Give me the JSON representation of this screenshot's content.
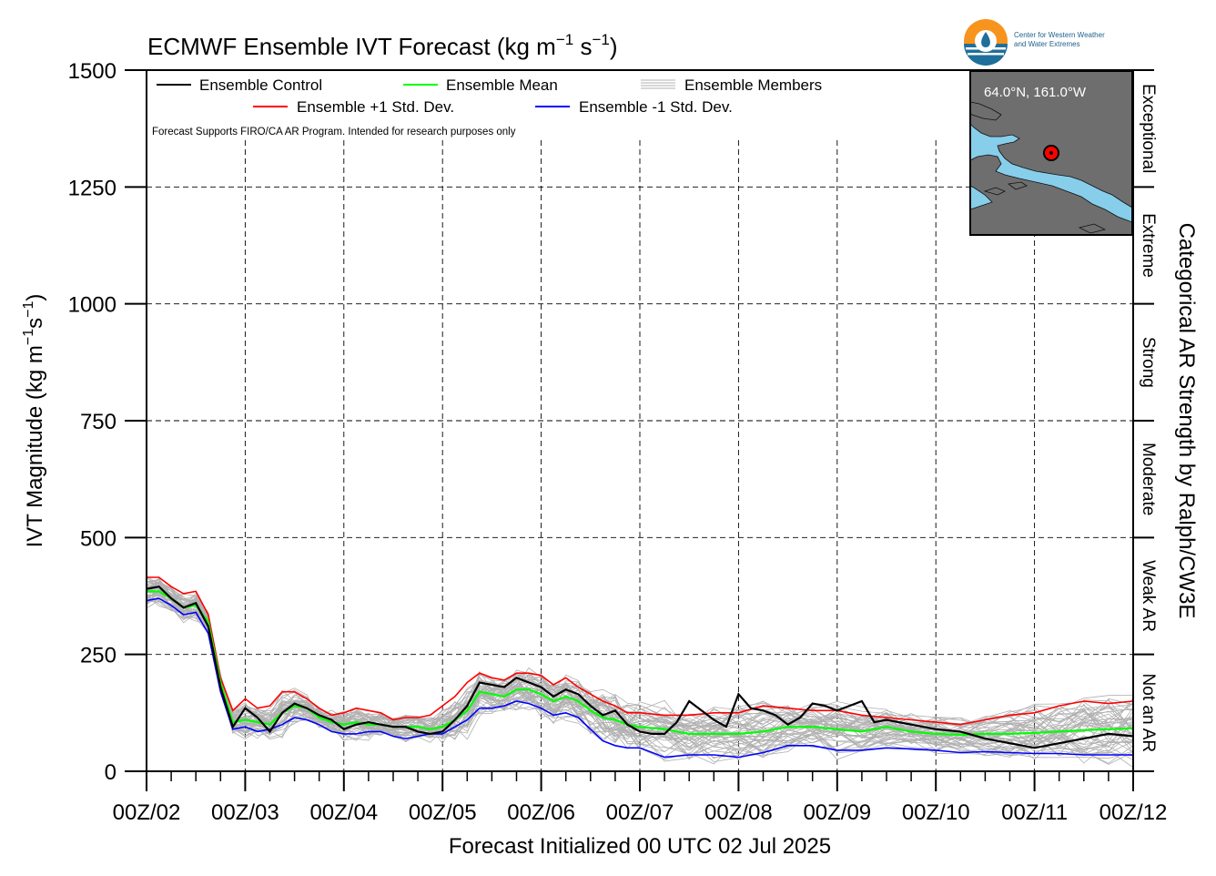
{
  "chart_data": {
    "type": "line",
    "title": "ECMWF Ensemble IVT Forecast (kg m⁻¹ s⁻¹)",
    "title_main": "ECMWF Ensemble IVT Forecast (kg m",
    "title_u1": "−1",
    "title_mid": " s",
    "title_u2": "−1",
    "title_end": ")",
    "ylabel": "IVT Magnitude (kg m⁻¹s⁻¹)",
    "ylabel_main": "IVT Magnitude (kg m",
    "ylabel_u1": "−1",
    "ylabel_mid": "s",
    "ylabel_u2": "−1",
    "ylabel_end": ")",
    "xlabel": "Forecast Initialized 00 UTC 02 Jul 2025",
    "right_label": "Categorical AR Strength by Ralph/CW3E",
    "note": "Forecast Supports FIRO/CA AR Program. Intended for research purposes only",
    "ylim": [
      0,
      1500
    ],
    "xlim": [
      0,
      240
    ],
    "yticks": [
      0,
      250,
      500,
      750,
      1000,
      1250,
      1500
    ],
    "x_tick_labels": [
      "00Z/02",
      "00Z/03",
      "00Z/04",
      "00Z/05",
      "00Z/06",
      "00Z/07",
      "00Z/08",
      "00Z/09",
      "00Z/10",
      "00Z/11",
      "00Z/12"
    ],
    "x_unit": "forecast hour",
    "grid": true,
    "legend_position": "top-left",
    "legend": [
      {
        "label": "Ensemble Control",
        "color": "#000000"
      },
      {
        "label": "Ensemble Mean",
        "color": "#00ff00"
      },
      {
        "label": "Ensemble Members",
        "color": "#b0b0b0"
      },
      {
        "label": "Ensemble +1 Std. Dev.",
        "color": "#ff0000"
      },
      {
        "label": "Ensemble -1 Std. Dev.",
        "color": "#0000ff"
      }
    ],
    "categories": [
      {
        "label": "Not an AR",
        "range": [
          0,
          250
        ]
      },
      {
        "label": "Weak AR",
        "range": [
          250,
          500
        ]
      },
      {
        "label": "Moderate",
        "range": [
          500,
          750
        ]
      },
      {
        "label": "Strong",
        "range": [
          750,
          1000
        ]
      },
      {
        "label": "Extreme",
        "range": [
          1000,
          1250
        ]
      },
      {
        "label": "Exceptional",
        "range": [
          1250,
          1500
        ]
      }
    ],
    "series": [
      {
        "name": "Ensemble Control",
        "color": "#000000",
        "x": [
          0,
          3,
          6,
          9,
          12,
          15,
          18,
          21,
          24,
          27,
          30,
          33,
          36,
          39,
          42,
          45,
          48,
          51,
          54,
          57,
          60,
          63,
          66,
          69,
          72,
          75,
          78,
          81,
          84,
          87,
          90,
          93,
          96,
          99,
          102,
          105,
          108,
          111,
          114,
          117,
          120,
          123,
          126,
          129,
          132,
          135,
          138,
          141,
          144,
          147,
          150,
          153,
          156,
          159,
          162,
          165,
          168,
          171,
          174,
          177,
          180,
          186,
          192,
          198,
          204,
          210,
          216,
          222,
          228,
          234,
          240
        ],
        "values": [
          390,
          395,
          370,
          350,
          360,
          310,
          180,
          95,
          135,
          115,
          85,
          125,
          145,
          135,
          120,
          110,
          90,
          100,
          105,
          100,
          95,
          95,
          85,
          80,
          85,
          110,
          140,
          190,
          185,
          180,
          200,
          190,
          180,
          160,
          175,
          165,
          140,
          120,
          130,
          100,
          85,
          80,
          80,
          105,
          150,
          130,
          110,
          95,
          165,
          135,
          130,
          120,
          100,
          115,
          145,
          140,
          130,
          140,
          150,
          105,
          110,
          100,
          90,
          85,
          70,
          60,
          50,
          60,
          70,
          80,
          75
        ]
      },
      {
        "name": "Ensemble Mean",
        "color": "#00ff00",
        "x": [
          0,
          3,
          6,
          9,
          12,
          15,
          18,
          21,
          24,
          27,
          30,
          33,
          36,
          39,
          42,
          45,
          48,
          51,
          54,
          57,
          60,
          63,
          66,
          69,
          72,
          75,
          78,
          81,
          84,
          87,
          90,
          93,
          96,
          99,
          102,
          105,
          108,
          111,
          114,
          117,
          120,
          126,
          132,
          138,
          144,
          150,
          156,
          162,
          168,
          174,
          180,
          186,
          192,
          198,
          204,
          210,
          216,
          222,
          228,
          234,
          240
        ],
        "values": [
          385,
          385,
          370,
          350,
          355,
          320,
          190,
          105,
          110,
          105,
          100,
          125,
          140,
          135,
          115,
          105,
          100,
          105,
          100,
          100,
          95,
          95,
          95,
          90,
          95,
          110,
          130,
          170,
          165,
          160,
          175,
          175,
          165,
          150,
          160,
          150,
          130,
          115,
          110,
          100,
          95,
          90,
          80,
          80,
          80,
          85,
          95,
          95,
          90,
          85,
          95,
          85,
          80,
          78,
          80,
          80,
          82,
          85,
          88,
          90,
          92
        ]
      },
      {
        "name": "Ensemble +1 Std. Dev.",
        "color": "#ff0000",
        "x": [
          0,
          3,
          6,
          9,
          12,
          15,
          18,
          21,
          24,
          27,
          30,
          33,
          36,
          39,
          42,
          45,
          48,
          51,
          54,
          57,
          60,
          63,
          66,
          69,
          72,
          75,
          78,
          81,
          84,
          87,
          90,
          93,
          96,
          99,
          102,
          105,
          108,
          111,
          114,
          117,
          120,
          126,
          132,
          138,
          144,
          150,
          156,
          162,
          168,
          174,
          180,
          186,
          192,
          198,
          204,
          210,
          216,
          222,
          228,
          234,
          240
        ],
        "values": [
          415,
          415,
          395,
          380,
          385,
          335,
          200,
          130,
          155,
          135,
          140,
          170,
          170,
          155,
          135,
          120,
          125,
          135,
          130,
          125,
          110,
          115,
          115,
          120,
          140,
          160,
          190,
          210,
          200,
          195,
          210,
          210,
          205,
          185,
          200,
          180,
          165,
          150,
          140,
          125,
          125,
          120,
          120,
          125,
          125,
          140,
          135,
          130,
          130,
          120,
          115,
          110,
          105,
          100,
          110,
          120,
          125,
          140,
          150,
          145,
          150
        ]
      },
      {
        "name": "Ensemble -1 Std. Dev.",
        "color": "#0000ff",
        "x": [
          0,
          3,
          6,
          9,
          12,
          15,
          18,
          21,
          24,
          27,
          30,
          33,
          36,
          39,
          42,
          45,
          48,
          51,
          54,
          57,
          60,
          63,
          66,
          69,
          72,
          75,
          78,
          81,
          84,
          87,
          90,
          93,
          96,
          99,
          102,
          105,
          108,
          111,
          114,
          117,
          120,
          126,
          132,
          138,
          144,
          150,
          156,
          162,
          168,
          174,
          180,
          186,
          192,
          198,
          204,
          210,
          216,
          222,
          228,
          234,
          240
        ],
        "values": [
          365,
          370,
          355,
          335,
          340,
          295,
          170,
          90,
          95,
          85,
          90,
          100,
          115,
          110,
          100,
          85,
          80,
          80,
          85,
          85,
          75,
          70,
          75,
          80,
          80,
          95,
          110,
          135,
          135,
          140,
          150,
          145,
          135,
          120,
          125,
          115,
          90,
          65,
          55,
          50,
          50,
          30,
          35,
          35,
          30,
          40,
          55,
          55,
          45,
          45,
          50,
          48,
          45,
          40,
          42,
          40,
          38,
          38,
          35,
          35,
          35
        ]
      }
    ]
  },
  "map": {
    "coords": "64.0°N, 161.0°W",
    "water_color": "#87ceeb",
    "land_color": "#6e6e6e"
  },
  "logo": {
    "line1": "Center for Western Weather",
    "line2": "and Water Extremes"
  }
}
